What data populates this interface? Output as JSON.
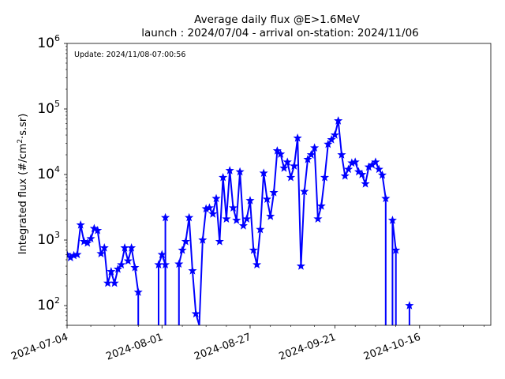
{
  "chart_data": {
    "type": "line",
    "title": "Average daily flux @E>1.6MeV",
    "subtitle": "launch : 2024/07/04 - arrival on-station: 2024/11/06",
    "annotation": "Update: 2024/11/08-07:00:56",
    "ylabel_main": "Integrated flux (#/cm",
    "ylabel_sup": "2",
    "ylabel_tail": "·s.sr)",
    "xlabel": "",
    "x_type": "date",
    "xlim": [
      "2024-07-04",
      "2024-11-06"
    ],
    "ylim": [
      50,
      1000000
    ],
    "y_scale": "log",
    "y_ticks": [
      {
        "value": 100,
        "base": "10",
        "exp": "2"
      },
      {
        "value": 1000,
        "base": "10",
        "exp": "3"
      },
      {
        "value": 10000,
        "base": "10",
        "exp": "4"
      },
      {
        "value": 100000,
        "base": "10",
        "exp": "5"
      },
      {
        "value": 1000000,
        "base": "10",
        "exp": "6"
      }
    ],
    "x_ticks": [
      {
        "date": "2024-07-04",
        "label": "2024-07-04"
      },
      {
        "date": "2024-08-01",
        "label": "2024-08-01"
      },
      {
        "date": "2024-08-27",
        "label": "2024-08-27"
      },
      {
        "date": "2024-09-21",
        "label": "2024-09-21"
      },
      {
        "date": "2024-10-16",
        "label": "2024-10-16"
      }
    ],
    "x_minor_ticks": [
      "2024-07-11",
      "2024-07-18",
      "2024-07-25",
      "2024-08-07",
      "2024-08-14",
      "2024-08-20",
      "2024-09-02",
      "2024-09-08",
      "2024-09-15",
      "2024-09-27",
      "2024-10-03",
      "2024-10-09",
      "2024-10-22",
      "2024-10-29",
      "2024-11-04"
    ],
    "grid": false,
    "color": "#0000ff",
    "marker": "star",
    "series": [
      {
        "segments": [
          [
            [
              "2024-07-04",
              600
            ],
            [
              "2024-07-05",
              540
            ],
            [
              "2024-07-06",
              580
            ],
            [
              "2024-07-07",
              600
            ],
            [
              "2024-07-08",
              1700
            ],
            [
              "2024-07-09",
              950
            ],
            [
              "2024-07-10",
              900
            ],
            [
              "2024-07-11",
              1050
            ],
            [
              "2024-07-12",
              1500
            ],
            [
              "2024-07-13",
              1400
            ],
            [
              "2024-07-14",
              620
            ],
            [
              "2024-07-15",
              760
            ],
            [
              "2024-07-16",
              220
            ],
            [
              "2024-07-17",
              330
            ],
            [
              "2024-07-18",
              220
            ],
            [
              "2024-07-19",
              360
            ],
            [
              "2024-07-20",
              420
            ],
            [
              "2024-07-21",
              760
            ],
            [
              "2024-07-22",
              480
            ],
            [
              "2024-07-23",
              760
            ],
            [
              "2024-07-24",
              380
            ],
            [
              "2024-07-25",
              160
            ],
            [
              "2024-07-25",
              50
            ]
          ],
          [
            [
              "2024-07-31",
              50
            ],
            [
              "2024-07-31",
              420
            ],
            [
              "2024-08-01",
              600
            ],
            [
              "2024-08-02",
              420
            ],
            [
              "2024-08-02",
              50
            ]
          ],
          [
            [
              "2024-08-02",
              50
            ],
            [
              "2024-08-02",
              2200
            ],
            [
              "2024-08-02",
              50
            ]
          ],
          [
            [
              "2024-08-06",
              50
            ],
            [
              "2024-08-06",
              430
            ],
            [
              "2024-08-07",
              700
            ],
            [
              "2024-08-08",
              950
            ],
            [
              "2024-08-09",
              2200
            ],
            [
              "2024-08-10",
              340
            ],
            [
              "2024-08-11",
              75
            ],
            [
              "2024-08-12",
              50
            ]
          ],
          [
            [
              "2024-08-12",
              50
            ],
            [
              "2024-08-13",
              1000
            ],
            [
              "2024-08-14",
              3000
            ],
            [
              "2024-08-15",
              3100
            ],
            [
              "2024-08-16",
              2500
            ],
            [
              "2024-08-17",
              4300
            ],
            [
              "2024-08-18",
              950
            ],
            [
              "2024-08-19",
              9000
            ],
            [
              "2024-08-20",
              2100
            ],
            [
              "2024-08-21",
              11500
            ],
            [
              "2024-08-22",
              3100
            ],
            [
              "2024-08-23",
              2000
            ],
            [
              "2024-08-24",
              11000
            ],
            [
              "2024-08-25",
              1650
            ],
            [
              "2024-08-26",
              2100
            ],
            [
              "2024-08-27",
              4000
            ],
            [
              "2024-08-28",
              700
            ],
            [
              "2024-08-29",
              420
            ],
            [
              "2024-08-30",
              1450
            ],
            [
              "2024-08-31",
              10500
            ],
            [
              "2024-09-01",
              4200
            ],
            [
              "2024-09-02",
              2300
            ],
            [
              "2024-09-03",
              5300
            ],
            [
              "2024-09-04",
              23000
            ],
            [
              "2024-09-05",
              20500
            ],
            [
              "2024-09-06",
              12500
            ],
            [
              "2024-09-07",
              15500
            ],
            [
              "2024-09-08",
              9000
            ],
            [
              "2024-09-09",
              13500
            ],
            [
              "2024-09-10",
              36000
            ],
            [
              "2024-09-11",
              400
            ],
            [
              "2024-09-12",
              5500
            ],
            [
              "2024-09-13",
              17000
            ],
            [
              "2024-09-14",
              20000
            ],
            [
              "2024-09-15",
              25500
            ],
            [
              "2024-09-16",
              2100
            ],
            [
              "2024-09-17",
              3300
            ],
            [
              "2024-09-18",
              9000
            ],
            [
              "2024-09-19",
              29000
            ],
            [
              "2024-09-20",
              34000
            ],
            [
              "2024-09-21",
              40000
            ],
            [
              "2024-09-22",
              66000
            ],
            [
              "2024-09-23",
              20000
            ],
            [
              "2024-09-24",
              9500
            ],
            [
              "2024-09-25",
              12000
            ],
            [
              "2024-09-26",
              15000
            ],
            [
              "2024-09-27",
              15500
            ],
            [
              "2024-09-28",
              11000
            ],
            [
              "2024-09-29",
              10000
            ],
            [
              "2024-09-30",
              7200
            ],
            [
              "2024-10-01",
              13000
            ],
            [
              "2024-10-02",
              14000
            ],
            [
              "2024-10-03",
              15500
            ],
            [
              "2024-10-04",
              12000
            ],
            [
              "2024-10-05",
              9800
            ],
            [
              "2024-10-06",
              4300
            ],
            [
              "2024-10-06",
              50
            ]
          ],
          [
            [
              "2024-10-08",
              50
            ],
            [
              "2024-10-08",
              2000
            ],
            [
              "2024-10-09",
              700
            ],
            [
              "2024-10-09",
              50
            ]
          ],
          [
            [
              "2024-10-13",
              50
            ],
            [
              "2024-10-13",
              100
            ]
          ]
        ]
      }
    ]
  }
}
